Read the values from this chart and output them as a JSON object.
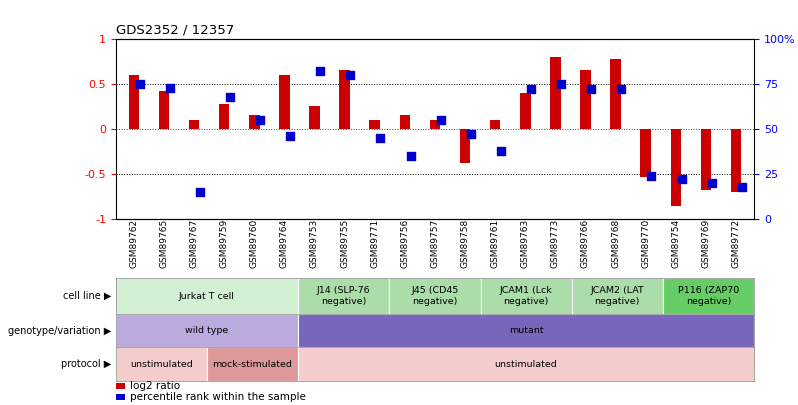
{
  "title": "GDS2352 / 12357",
  "samples": [
    "GSM89762",
    "GSM89765",
    "GSM89767",
    "GSM89759",
    "GSM89760",
    "GSM89764",
    "GSM89753",
    "GSM89755",
    "GSM89771",
    "GSM89756",
    "GSM89757",
    "GSM89758",
    "GSM89761",
    "GSM89763",
    "GSM89773",
    "GSM89766",
    "GSM89768",
    "GSM89770",
    "GSM89754",
    "GSM89769",
    "GSM89772"
  ],
  "log2_ratio": [
    0.6,
    0.42,
    0.1,
    0.28,
    0.16,
    0.6,
    0.25,
    0.65,
    0.1,
    0.15,
    0.1,
    -0.38,
    0.1,
    0.4,
    0.8,
    0.65,
    0.78,
    -0.53,
    -0.85,
    -0.68,
    -0.7
  ],
  "percentile_rank": [
    75,
    73,
    15,
    68,
    55,
    46,
    82,
    80,
    45,
    35,
    55,
    47,
    38,
    72,
    75,
    72,
    72,
    24,
    22,
    20,
    18
  ],
  "cell_line_groups": [
    {
      "label": "Jurkat T cell",
      "start": 0,
      "end": 6,
      "color": "#d4f0d4"
    },
    {
      "label": "J14 (SLP-76\nnegative)",
      "start": 6,
      "end": 9,
      "color": "#aaddaa"
    },
    {
      "label": "J45 (CD45\nnegative)",
      "start": 9,
      "end": 12,
      "color": "#aaddaa"
    },
    {
      "label": "JCAM1 (Lck\nnegative)",
      "start": 12,
      "end": 15,
      "color": "#aaddaa"
    },
    {
      "label": "JCAM2 (LAT\nnegative)",
      "start": 15,
      "end": 18,
      "color": "#aaddaa"
    },
    {
      "label": "P116 (ZAP70\nnegative)",
      "start": 18,
      "end": 21,
      "color": "#66cc66"
    }
  ],
  "genotype_groups": [
    {
      "label": "wild type",
      "start": 0,
      "end": 6,
      "color": "#bbaadd"
    },
    {
      "label": "mutant",
      "start": 6,
      "end": 21,
      "color": "#7766bb"
    }
  ],
  "protocol_groups": [
    {
      "label": "unstimulated",
      "start": 0,
      "end": 3,
      "color": "#f5cccc"
    },
    {
      "label": "mock-stimulated",
      "start": 3,
      "end": 6,
      "color": "#dd9999"
    },
    {
      "label": "unstimulated",
      "start": 6,
      "end": 21,
      "color": "#f5cccc"
    }
  ],
  "bar_color": "#cc0000",
  "dot_color": "#0000cc",
  "ylim_left": [
    -1.0,
    1.0
  ],
  "ylim_right": [
    0,
    100
  ],
  "yticks_left": [
    -1.0,
    -0.5,
    0.0,
    0.5,
    1.0
  ],
  "ytick_labels_left": [
    "-1",
    "-0.5",
    "0",
    "0.5",
    "1"
  ],
  "yticks_right": [
    0,
    25,
    50,
    75,
    100
  ],
  "ytick_labels_right": [
    "0",
    "25",
    "50",
    "75",
    "100%"
  ],
  "hlines_black": [
    -0.5,
    0.5
  ],
  "hline_red": 0.0,
  "legend_items": [
    {
      "color": "#cc0000",
      "label": "log2 ratio"
    },
    {
      "color": "#0000cc",
      "label": "percentile rank within the sample"
    }
  ]
}
